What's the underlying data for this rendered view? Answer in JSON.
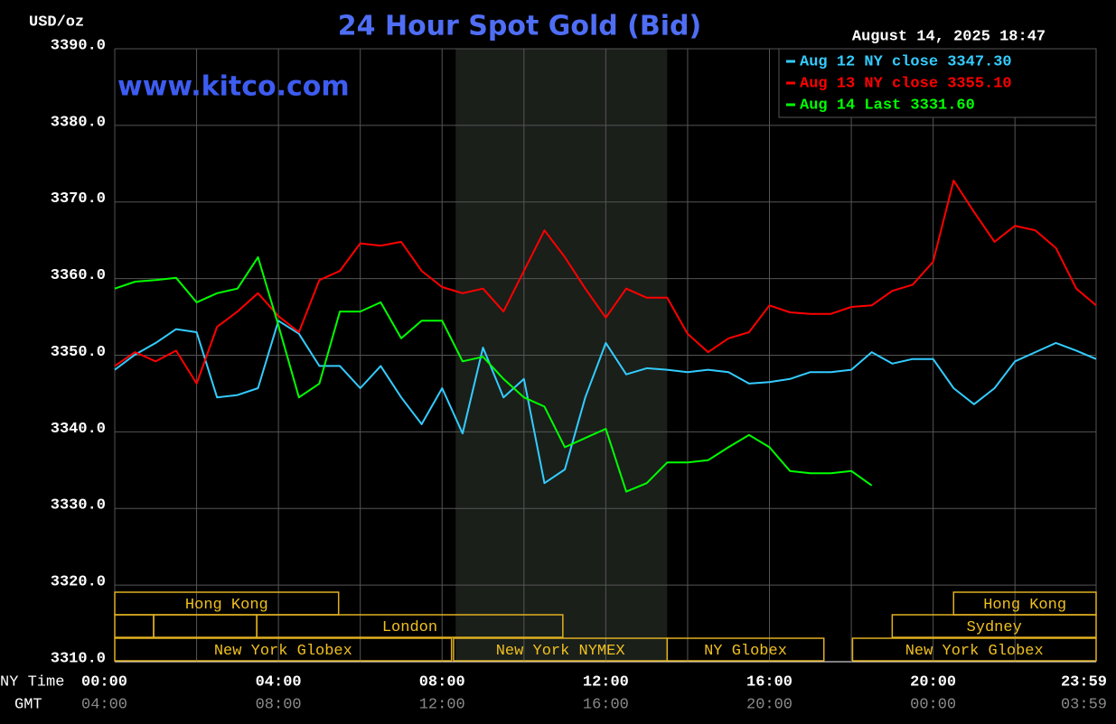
{
  "chart_data": {
    "type": "line",
    "title": "24 Hour Spot Gold (Bid)",
    "y_unit_label": "USD/oz",
    "timestamp": "August 14, 2025 18:47",
    "watermark": "www.kitco.com",
    "x_axis_labels": [
      "NY Time",
      "GMT"
    ],
    "x": [
      0,
      0.5,
      1,
      1.5,
      2,
      2.5,
      3,
      3.5,
      4,
      4.5,
      5,
      5.5,
      6,
      6.5,
      7,
      7.5,
      8,
      8.5,
      9,
      9.5,
      10,
      10.5,
      11,
      11.5,
      12,
      12.5,
      13,
      13.5,
      14,
      14.5,
      15,
      15.5,
      16,
      16.5,
      17,
      17.5,
      18,
      18.5,
      19,
      19.5,
      20,
      20.5,
      21,
      21.5,
      22,
      22.5,
      23,
      23.5,
      23.983
    ],
    "xlim": [
      0,
      23.983
    ],
    "xticks": [
      {
        "value": 0,
        "label": "00:00"
      },
      {
        "value": 4,
        "label": "04:00"
      },
      {
        "value": 8,
        "label": "08:00"
      },
      {
        "value": 12,
        "label": "12:00"
      },
      {
        "value": 16,
        "label": "16:00"
      },
      {
        "value": 20,
        "label": "20:00"
      },
      {
        "value": 23.983,
        "label": "23:59"
      }
    ],
    "gmt_labels": [
      "04:00",
      "08:00",
      "12:00",
      "16:00",
      "20:00",
      "00:00",
      "03:59"
    ],
    "x_minor_grid": [
      2,
      6,
      10,
      14,
      18,
      22
    ],
    "ylim": [
      3310,
      3390
    ],
    "yticks": [
      {
        "value": 3310,
        "label": "3310.0"
      },
      {
        "value": 3320,
        "label": "3320.0"
      },
      {
        "value": 3330,
        "label": "3330.0"
      },
      {
        "value": 3340,
        "label": "3340.0"
      },
      {
        "value": 3350,
        "label": "3350.0"
      },
      {
        "value": 3360,
        "label": "3360.0"
      },
      {
        "value": 3370,
        "label": "3370.0"
      },
      {
        "value": 3380,
        "label": "3380.0"
      },
      {
        "value": 3390,
        "label": "3390.0"
      }
    ],
    "grid": true,
    "shaded_range": [
      8.33,
      13.5
    ],
    "legend": "top-right",
    "sessions": [
      [
        {
          "label": "Hong Kong",
          "start": 0,
          "end": 5.47
        },
        {
          "label": "Hong Kong",
          "start": 20.5,
          "end": 23.983
        }
      ],
      [
        {
          "start": 0,
          "end": 0.95
        },
        {
          "start": 0.95,
          "end": 3.47
        },
        {
          "label": "London",
          "start": 3.47,
          "end": 10.95
        },
        {
          "label": "Sydney",
          "start": 19,
          "end": 23.983
        }
      ],
      [
        {
          "label": "New York Globex",
          "start": 0,
          "end": 8.23
        },
        {
          "label": "New York NYMEX",
          "start": 8.28,
          "end": 13.5
        },
        {
          "label": "NY Globex",
          "start": 13.5,
          "end": 17.33
        },
        {
          "label": "New York Globex",
          "start": 18.03,
          "end": 23.983
        }
      ]
    ],
    "series": [
      {
        "name": "Aug 12 NY close 3347.30",
        "color": "#33ccff",
        "values": [
          3348.1,
          3350.1,
          3351.6,
          3353.4,
          3353.0,
          3344.5,
          3344.8,
          3345.7,
          3354.5,
          3352.8,
          3348.6,
          3348.6,
          3345.7,
          3348.6,
          3344.5,
          3341.0,
          3345.7,
          3339.8,
          3351.0,
          3344.5,
          3346.9,
          3333.3,
          3335.1,
          3344.5,
          3351.6,
          3347.5,
          3348.3,
          3348.1,
          3347.8,
          3348.1,
          3347.8,
          3346.3,
          3346.5,
          3346.9,
          3347.8,
          3347.8,
          3348.1,
          3350.4,
          3348.9,
          3349.5,
          3349.5,
          3345.7,
          3343.6,
          3345.7,
          3349.2,
          3350.4,
          3351.6,
          3350.6,
          3349.5
        ]
      },
      {
        "name": "Aug 13 NY close 3355.10",
        "color": "#ff0000",
        "values": [
          3348.6,
          3350.4,
          3349.2,
          3350.6,
          3346.3,
          3353.7,
          3355.7,
          3358.1,
          3355.1,
          3353.0,
          3359.8,
          3361.0,
          3364.6,
          3364.3,
          3364.8,
          3361.0,
          3358.9,
          3358.1,
          3358.7,
          3355.7,
          3361.0,
          3366.3,
          3362.8,
          3358.7,
          3354.9,
          3358.7,
          3357.5,
          3357.5,
          3352.8,
          3350.4,
          3352.2,
          3353.0,
          3356.5,
          3355.6,
          3355.4,
          3355.4,
          3356.3,
          3356.5,
          3358.4,
          3359.2,
          3362.2,
          3372.8,
          3368.7,
          3364.8,
          3366.9,
          3366.3,
          3364.0,
          3358.7,
          3356.5
        ]
      },
      {
        "name": "Aug 14 Last 3331.60",
        "color": "#00ff00",
        "values": [
          3358.7,
          3359.6,
          3359.8,
          3360.1,
          3356.9,
          3358.1,
          3358.7,
          3362.8,
          3353.9,
          3344.5,
          3346.3,
          3355.7,
          3355.7,
          3356.9,
          3352.2,
          3354.5,
          3354.5,
          3349.2,
          3349.8,
          3346.9,
          3344.5,
          3343.3,
          3338.0,
          3339.2,
          3340.4,
          3332.2,
          3333.3,
          3336.0,
          3336.0,
          3336.3,
          3338.0,
          3339.6,
          3338.0,
          3334.9,
          3334.6,
          3334.6,
          3334.9,
          3333.0,
          null,
          null,
          null,
          null,
          null,
          null,
          null,
          null,
          null,
          null,
          null
        ]
      }
    ]
  }
}
